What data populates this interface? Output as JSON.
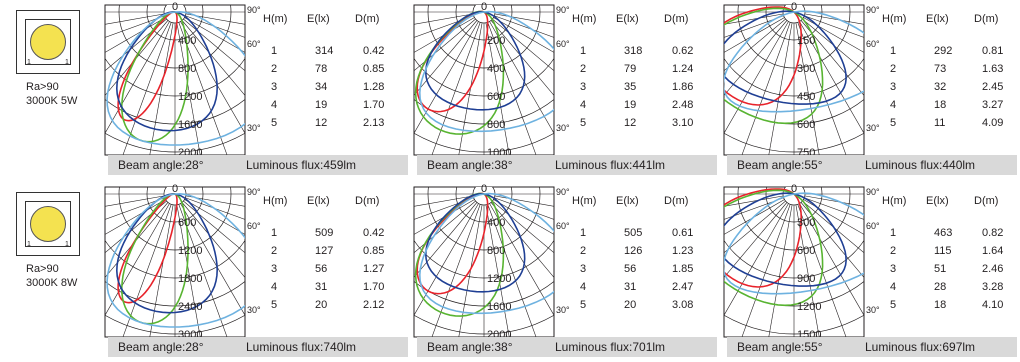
{
  "products": [
    {
      "id": "5w",
      "spec_line1": "Ra>90",
      "spec_line2": "3000K 5W",
      "chip_mark": "1",
      "panels": [
        {
          "beam_angle": "Beam angle:28°",
          "luminous_flux": "Luminous flux:459lm",
          "ring_labels": [
            "400",
            "800",
            "1200",
            "1600",
            "2000"
          ],
          "table": [
            [
              "1",
              "314",
              "0.42"
            ],
            [
              "2",
              "78",
              "0.85"
            ],
            [
              "3",
              "34",
              "1.28"
            ],
            [
              "4",
              "19",
              "1.70"
            ],
            [
              "5",
              "12",
              "2.13"
            ]
          ]
        },
        {
          "beam_angle": "Beam angle:38°",
          "luminous_flux": "Luminous flux:441lm",
          "ring_labels": [
            "200",
            "400",
            "600",
            "800",
            "1000"
          ],
          "table": [
            [
              "1",
              "318",
              "0.62"
            ],
            [
              "2",
              "79",
              "1.24"
            ],
            [
              "3",
              "35",
              "1.86"
            ],
            [
              "4",
              "19",
              "2.48"
            ],
            [
              "5",
              "12",
              "3.10"
            ]
          ]
        },
        {
          "beam_angle": "Beam angle:55°",
          "luminous_flux": "Luminous flux:440lm",
          "ring_labels": [
            "150",
            "300",
            "450",
            "600",
            "750"
          ],
          "table": [
            [
              "1",
              "292",
              "0.81"
            ],
            [
              "2",
              "73",
              "1.63"
            ],
            [
              "3",
              "32",
              "2.45"
            ],
            [
              "4",
              "18",
              "3.27"
            ],
            [
              "5",
              "11",
              "4.09"
            ]
          ]
        }
      ]
    },
    {
      "id": "8w",
      "spec_line1": "Ra>90",
      "spec_line2": "3000K 8W",
      "chip_mark": "1",
      "panels": [
        {
          "beam_angle": "Beam angle:28°",
          "luminous_flux": "Luminous flux:740lm",
          "ring_labels": [
            "600",
            "1200",
            "1800",
            "2400",
            "3000"
          ],
          "table": [
            [
              "1",
              "509",
              "0.42"
            ],
            [
              "2",
              "127",
              "0.85"
            ],
            [
              "3",
              "56",
              "1.27"
            ],
            [
              "4",
              "31",
              "1.70"
            ],
            [
              "5",
              "20",
              "2.12"
            ]
          ]
        },
        {
          "beam_angle": "Beam angle:38°",
          "luminous_flux": "Luminous flux:701lm",
          "ring_labels": [
            "400",
            "800",
            "1200",
            "1600",
            "2000"
          ],
          "table": [
            [
              "1",
              "505",
              "0.61"
            ],
            [
              "2",
              "126",
              "1.23"
            ],
            [
              "3",
              "56",
              "1.85"
            ],
            [
              "4",
              "31",
              "2.47"
            ],
            [
              "5",
              "20",
              "3.08"
            ]
          ]
        },
        {
          "beam_angle": "Beam angle:55°",
          "luminous_flux": "Luminous flux:697lm",
          "ring_labels": [
            "300",
            "600",
            "900",
            "1200",
            "1500"
          ],
          "table": [
            [
              "1",
              "463",
              "0.82"
            ],
            [
              "2",
              "115",
              "1.64"
            ],
            [
              "3",
              "51",
              "2.46"
            ],
            [
              "4",
              "28",
              "3.28"
            ],
            [
              "5",
              "18",
              "4.10"
            ]
          ]
        }
      ]
    }
  ],
  "polar": {
    "top_angle_label": "0",
    "angle_labels": [
      "90°",
      "60°",
      "30°"
    ]
  },
  "table_headers": [
    "H(m)",
    "E(lx)",
    "D(m)"
  ],
  "curve_colors": [
    "#e8232b",
    "#58b431",
    "#1f3f94",
    "#6eb2e0"
  ]
}
